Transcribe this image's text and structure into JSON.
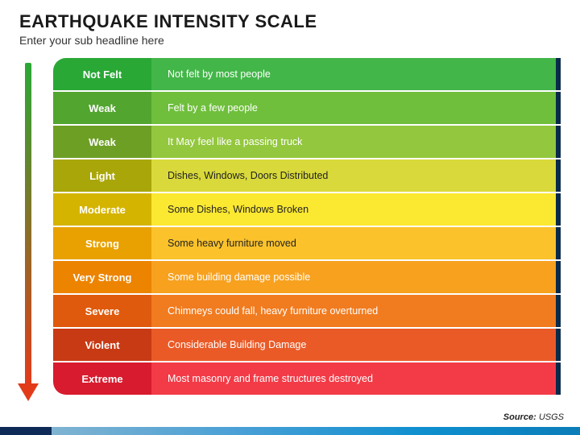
{
  "title": "EARTHQUAKE INTENSITY SCALE",
  "subtitle": "Enter your sub headline here",
  "source_label": "Source:",
  "source_value": "USGS",
  "arrow": {
    "gradient_top": "#2aa836",
    "gradient_bottom": "#e23b1a",
    "head_color": "#e23b1a"
  },
  "right_edge_color": "#0a2a4a",
  "rows": [
    {
      "label": "Not Felt",
      "desc": "Not felt by most people",
      "label_bg": "#2aa836",
      "desc_bg": "#43b649",
      "desc_color": "#ffffff"
    },
    {
      "label": "Weak",
      "desc": "Felt by a few people",
      "label_bg": "#52a52f",
      "desc_bg": "#6fbf3c",
      "desc_color": "#ffffff"
    },
    {
      "label": "Weak",
      "desc": "It May feel like a passing truck",
      "label_bg": "#6d9f25",
      "desc_bg": "#93c73e",
      "desc_color": "#ffffff"
    },
    {
      "label": "Light",
      "desc": "Dishes, Windows, Doors Distributed",
      "label_bg": "#a9a60a",
      "desc_bg": "#d9d93b",
      "desc_color": "#222222"
    },
    {
      "label": "Moderate",
      "desc": "Some Dishes, Windows Broken",
      "label_bg": "#d5b400",
      "desc_bg": "#fbe831",
      "desc_color": "#222222"
    },
    {
      "label": "Strong",
      "desc": "Some heavy furniture moved",
      "label_bg": "#e8a100",
      "desc_bg": "#fbc22b",
      "desc_color": "#222222"
    },
    {
      "label": "Very Strong",
      "desc": "Some building damage possible",
      "label_bg": "#ec8400",
      "desc_bg": "#f7a11f",
      "desc_color": "#ffffff"
    },
    {
      "label": "Severe",
      "desc": "Chimneys could fall, heavy furniture overturned",
      "label_bg": "#df5a0c",
      "desc_bg": "#f17b1f",
      "desc_color": "#ffffff"
    },
    {
      "label": "Violent",
      "desc": "Considerable Building Damage",
      "label_bg": "#c83a14",
      "desc_bg": "#ea5a27",
      "desc_color": "#ffffff"
    },
    {
      "label": "Extreme",
      "desc": "Most masonry and frame structures destroyed",
      "label_bg": "#d81b2e",
      "desc_bg": "#f23b47",
      "desc_color": "#ffffff"
    }
  ],
  "bottom_bar": {
    "dark": "#0f2a57",
    "grad_from": "#7fb3d1",
    "grad_to": "#0b7db8"
  }
}
